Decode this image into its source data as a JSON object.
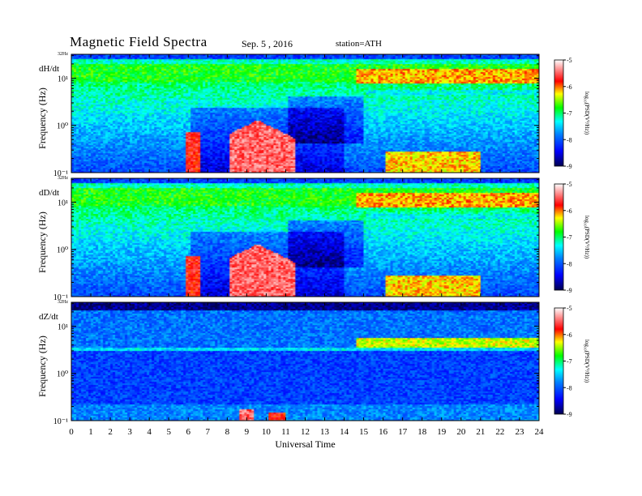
{
  "header": {
    "title": "Magnetic  Field  Spectra",
    "date": "Sep. 5  , 2016",
    "station": "station=ATH"
  },
  "chart_data": [
    {
      "type": "heatmap",
      "panel_label": "dH/dt",
      "ylabel": "Frequency  (Hz)",
      "top_label": "32Hz",
      "yticks": [
        "10¹",
        "10⁰",
        "10⁻¹"
      ],
      "xlim": [
        0,
        24
      ],
      "ylim_hz": [
        0.1,
        32
      ],
      "yscale": "log",
      "colorbar": {
        "label": "log₁₀(PSD(V²/Hz))",
        "ticks": [
          "-5",
          "-6",
          "-7",
          "-8",
          "-9"
        ],
        "range": [
          -9,
          -5
        ]
      }
    },
    {
      "type": "heatmap",
      "panel_label": "dD/dt",
      "ylabel": "Frequency  (Hz)",
      "top_label": "32Hz",
      "yticks": [
        "10¹",
        "10⁰",
        "10⁻¹"
      ],
      "xlim": [
        0,
        24
      ],
      "ylim_hz": [
        0.1,
        32
      ],
      "yscale": "log",
      "colorbar": {
        "label": "log₁₀(PSD(V²/Hz))",
        "ticks": [
          "-5",
          "-6",
          "-7",
          "-8",
          "-9"
        ],
        "range": [
          -9,
          -5
        ]
      }
    },
    {
      "type": "heatmap",
      "panel_label": "dZ/dt",
      "ylabel": "Frequency  (Hz)",
      "top_label": "32Hz",
      "yticks": [
        "10¹",
        "10⁰",
        "10⁻¹"
      ],
      "xlim": [
        0,
        24
      ],
      "ylim_hz": [
        0.1,
        32
      ],
      "yscale": "log",
      "colorbar": {
        "label": "log₁₀(PSD(V²/Hz))",
        "ticks": [
          "-5",
          "-6",
          "-7",
          "-8",
          "-9"
        ],
        "range": [
          -9,
          -5
        ]
      }
    }
  ],
  "xaxis": {
    "label": "Universal Time",
    "ticks": [
      "0",
      "1",
      "2",
      "3",
      "4",
      "5",
      "6",
      "7",
      "8",
      "9",
      "10",
      "11",
      "12",
      "13",
      "14",
      "15",
      "16",
      "17",
      "18",
      "19",
      "20",
      "21",
      "22",
      "23",
      "24"
    ]
  },
  "colors": {
    "colormap": [
      "#000060",
      "#0000ff",
      "#00ffff",
      "#00ff00",
      "#ffff00",
      "#ff0000",
      "#ffffff"
    ]
  }
}
